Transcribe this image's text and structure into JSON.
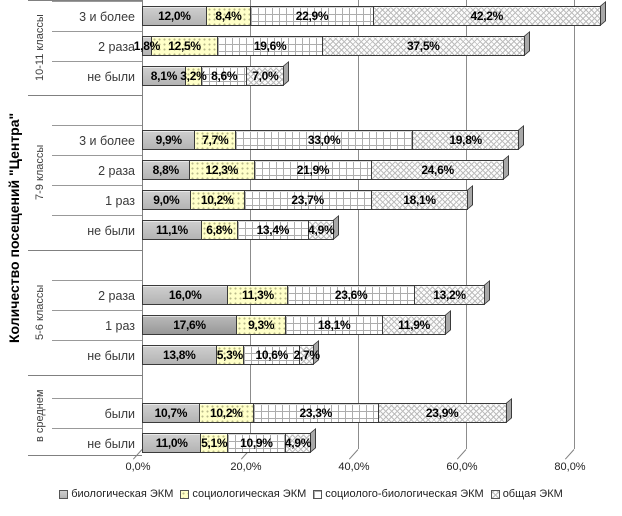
{
  "y_axis_title": "Количество посещений \"Центра\"",
  "chart_data": {
    "type": "bar",
    "orientation": "horizontal-stacked-3d",
    "title": "",
    "xlabel": "",
    "ylabel": "Количество посещений \"Центра\"",
    "x_axis": {
      "tick_values": [
        0,
        20,
        40,
        60,
        80
      ],
      "tick_labels": [
        "0,0%",
        "20,0%",
        "40,0%",
        "60,0%",
        "80,0%"
      ],
      "max": 88,
      "gridlines": true
    },
    "value_format": {
      "decimals": 1,
      "decimal_separator": ",",
      "suffix": "%"
    },
    "series": [
      "биологическая ЭКМ",
      "социологическая ЭКМ",
      "социолого-биологическая ЭКМ",
      "общая ЭКМ"
    ],
    "series_fill_colors": [
      "#bfbfbf",
      "#ffffc8",
      "#ffffff",
      "#fcfcfc"
    ],
    "series_patterns": [
      "solid-gray",
      "yellow-dots",
      "gray-grid",
      "diagonal-lattice"
    ],
    "segment_border_color": "#3a3a3a",
    "groups": [
      {
        "label": "10-11 классы",
        "rows": [
          {
            "label": "3 и более",
            "values": [
              12.0,
              8.4,
              22.9,
              42.2
            ]
          },
          {
            "label": "2 раза",
            "values": [
              1.8,
              12.5,
              19.6,
              37.5
            ]
          },
          {
            "label": "не были",
            "values": [
              8.1,
              3.2,
              8.6,
              7.0
            ]
          }
        ]
      },
      {
        "label": "7-9 классы",
        "rows": [
          {
            "label": "3 и более",
            "values": [
              9.9,
              7.7,
              33.0,
              19.8
            ]
          },
          {
            "label": "2 раза",
            "values": [
              8.8,
              12.3,
              21.9,
              24.6
            ]
          },
          {
            "label": "1 раз",
            "values": [
              9.0,
              10.2,
              23.7,
              18.1
            ]
          },
          {
            "label": "не были",
            "values": [
              11.1,
              6.8,
              13.4,
              4.9
            ]
          }
        ]
      },
      {
        "label": "5-6 классы",
        "rows": [
          {
            "label": "2 раза",
            "values": [
              16.0,
              11.3,
              23.6,
              13.2
            ]
          },
          {
            "label": "1 раз",
            "values": [
              17.6,
              9.3,
              18.1,
              11.9
            ],
            "dark_first": true
          },
          {
            "label": "не были",
            "values": [
              13.8,
              5.3,
              10.6,
              2.7
            ]
          }
        ]
      },
      {
        "label": "в среднем",
        "rows": [
          {
            "label": "были",
            "values": [
              10.7,
              10.2,
              23.3,
              23.9
            ]
          },
          {
            "label": "не были",
            "values": [
              11.0,
              5.1,
              10.9,
              4.9
            ]
          }
        ]
      }
    ],
    "legend": {
      "position": "bottom",
      "entries": [
        "биологическая ЭКМ",
        "социологическая ЭКМ",
        "социолого-биологическая ЭКМ",
        "общая ЭКМ"
      ]
    }
  }
}
